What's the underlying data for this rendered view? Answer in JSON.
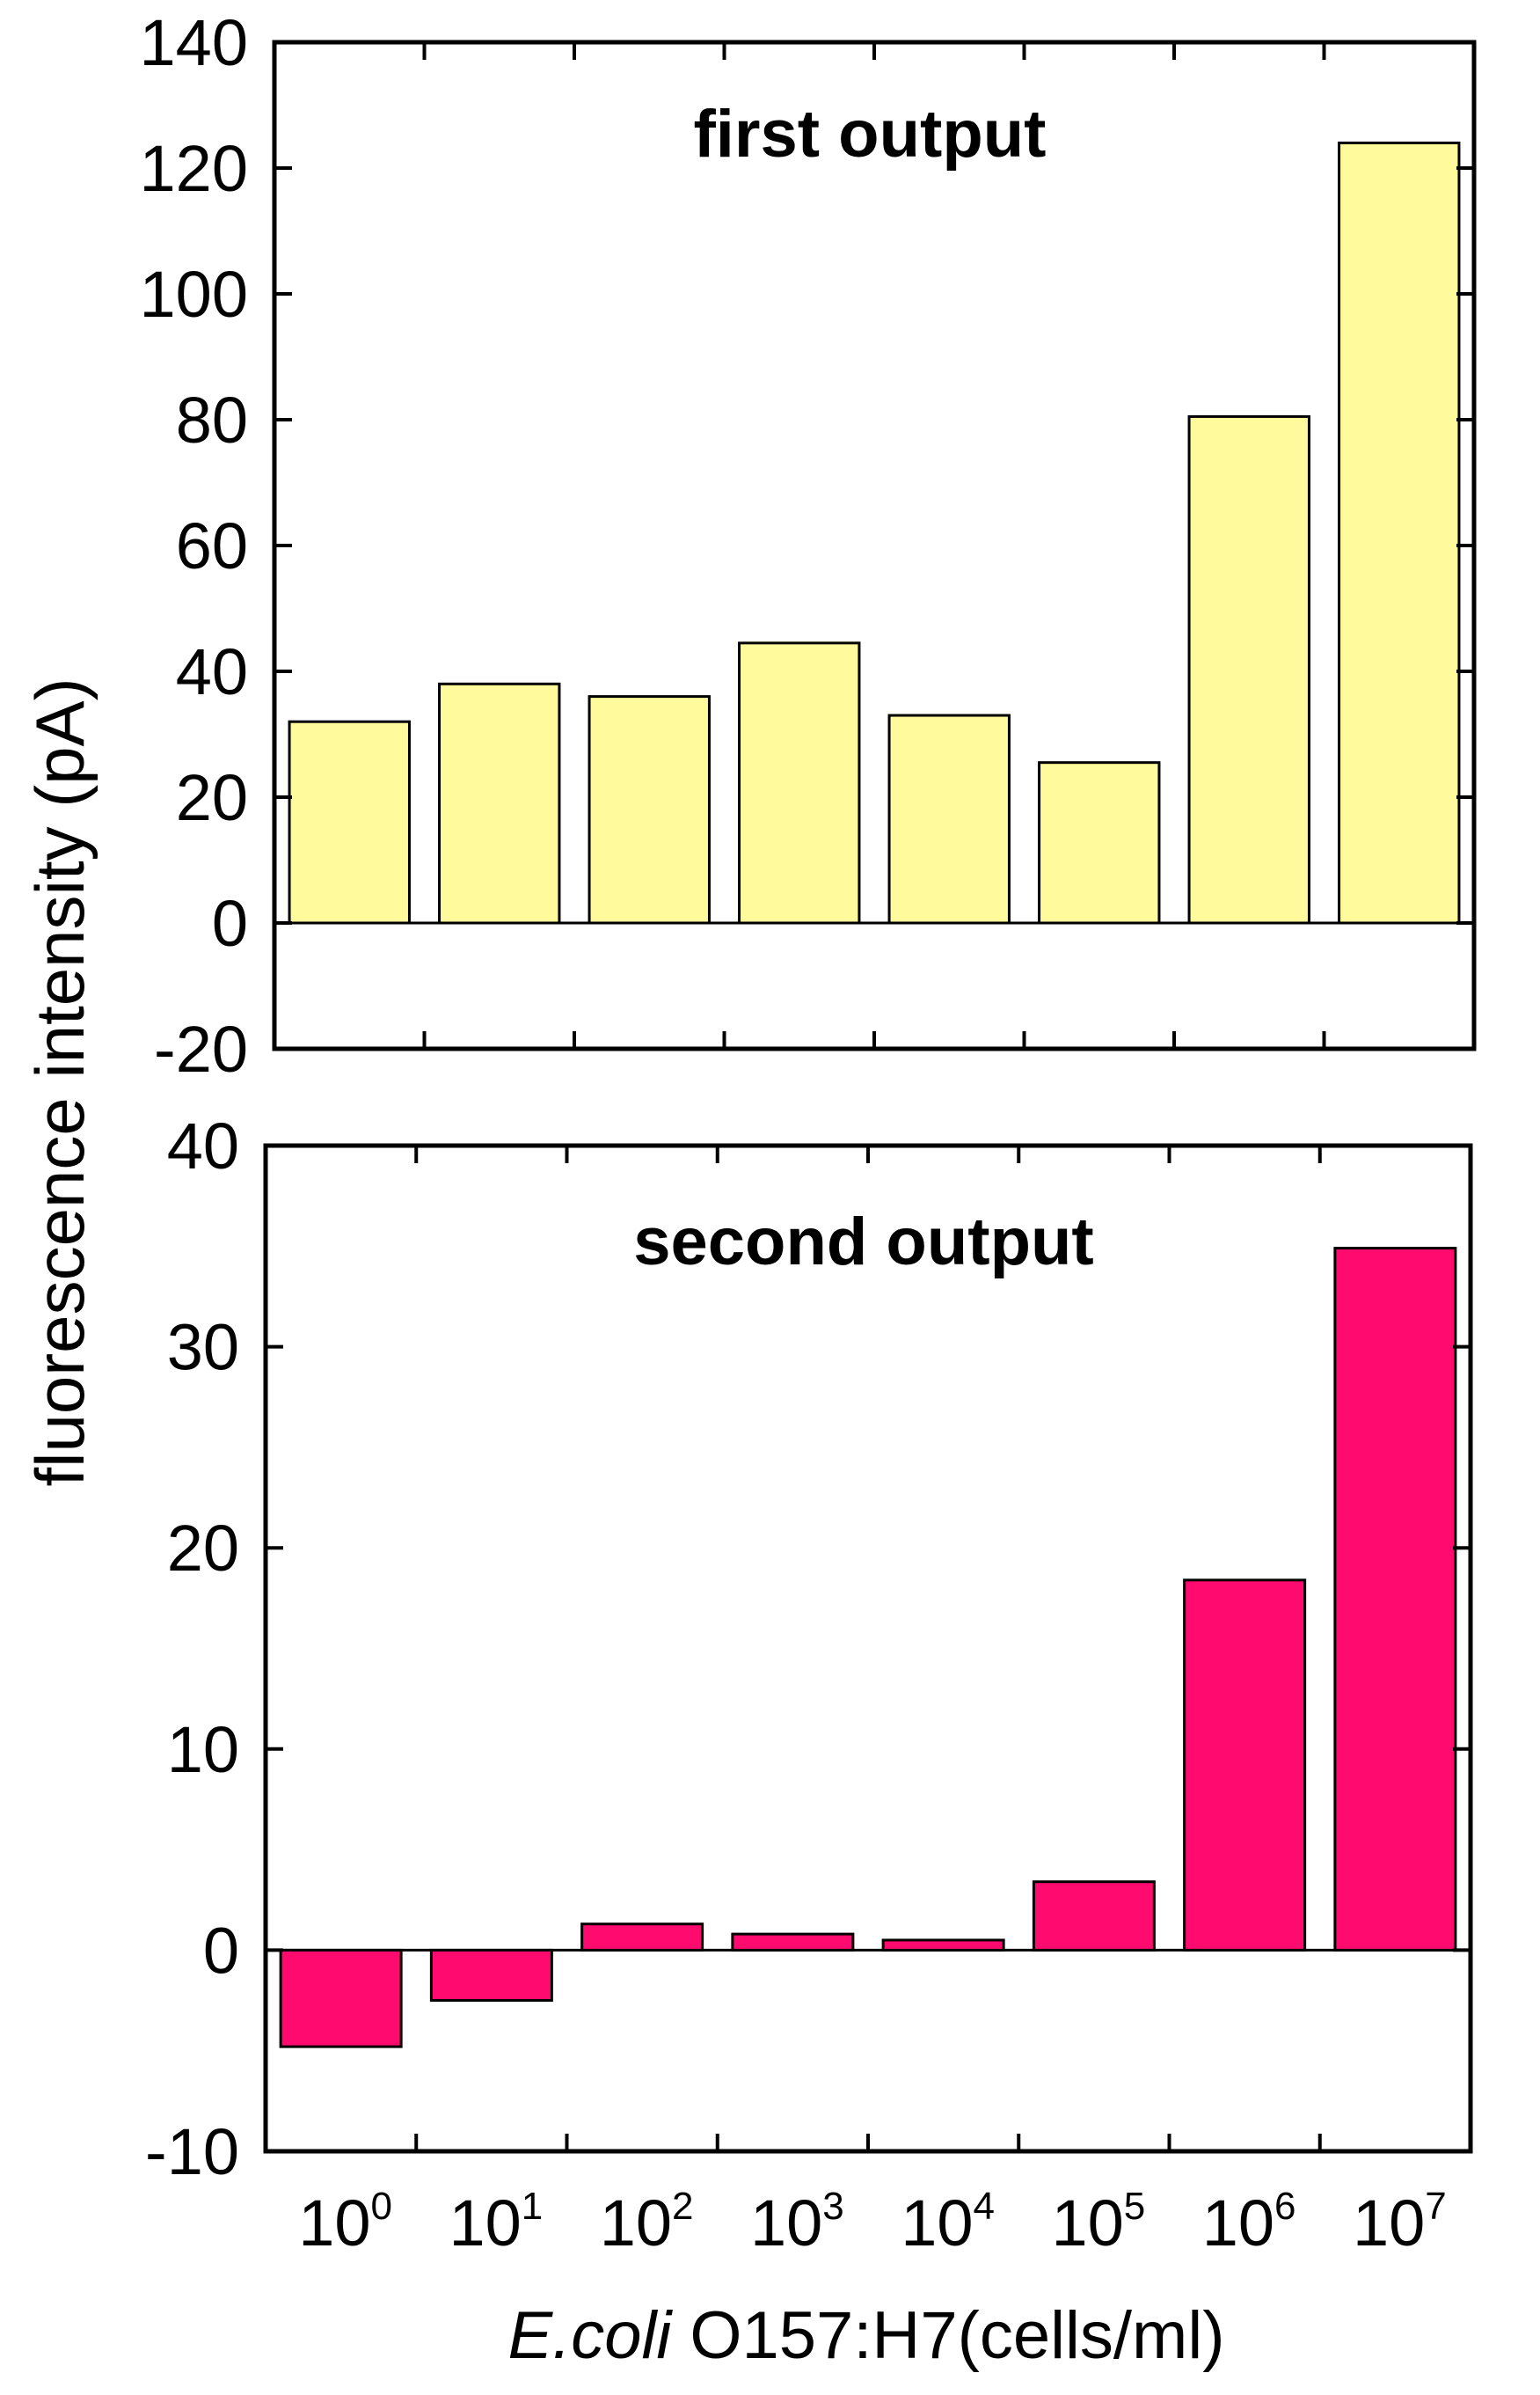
{
  "ylabel": "fluorescence intensity (pA)",
  "xlabel": {
    "italic_part": "E.coli",
    "rest": " O157:H7(cells/ml)"
  },
  "categories": [
    {
      "base": "10",
      "exp": "0"
    },
    {
      "base": "10",
      "exp": "1"
    },
    {
      "base": "10",
      "exp": "2"
    },
    {
      "base": "10",
      "exp": "3"
    },
    {
      "base": "10",
      "exp": "4"
    },
    {
      "base": "10",
      "exp": "5"
    },
    {
      "base": "10",
      "exp": "6"
    },
    {
      "base": "10",
      "exp": "7"
    }
  ],
  "chart_data": [
    {
      "type": "bar",
      "title": "first output",
      "categories": [
        "10^0",
        "10^1",
        "10^2",
        "10^3",
        "10^4",
        "10^5",
        "10^6",
        "10^7"
      ],
      "values": [
        32,
        38,
        36,
        44.5,
        33,
        25.5,
        80.5,
        124
      ],
      "ylim": [
        -20,
        140
      ],
      "yticks": [
        -20,
        0,
        20,
        40,
        60,
        80,
        100,
        120,
        140
      ],
      "bar_color": "#fffa9c",
      "grid": false
    },
    {
      "type": "bar",
      "title": "second output",
      "categories": [
        "10^0",
        "10^1",
        "10^2",
        "10^3",
        "10^4",
        "10^5",
        "10^6",
        "10^7"
      ],
      "values": [
        -4.8,
        -2.5,
        1.3,
        0.8,
        0.5,
        3.4,
        18.4,
        34.9
      ],
      "ylim": [
        -10,
        40
      ],
      "yticks": [
        -10,
        0,
        10,
        20,
        30,
        40
      ],
      "bar_color": "#ff0a6e",
      "grid": false
    }
  ]
}
